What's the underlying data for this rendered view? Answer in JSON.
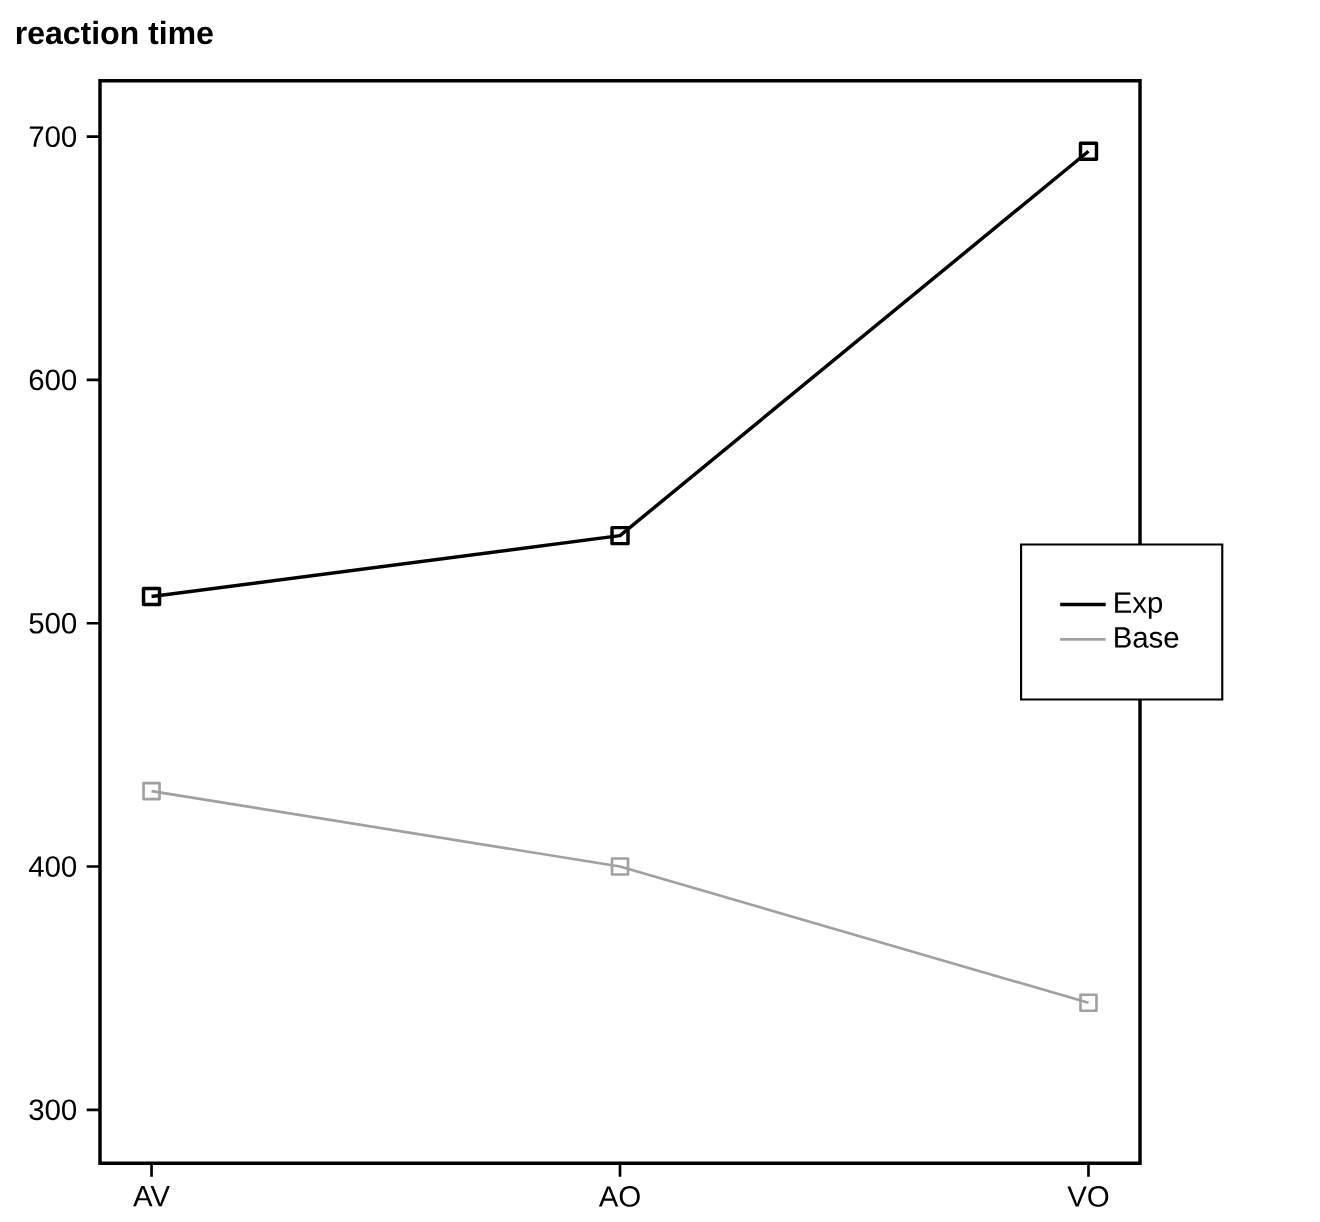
{
  "chart_data": {
    "type": "line",
    "title": "reaction time",
    "categories": [
      "AV",
      "AO",
      "VO"
    ],
    "series": [
      {
        "name": "Exp",
        "color": "#000000",
        "values": [
          511,
          536,
          694
        ]
      },
      {
        "name": "Base",
        "color": "#a0a0a0",
        "values": [
          431,
          400,
          344
        ]
      }
    ],
    "ylim": [
      278,
      723
    ],
    "yticks": [
      300,
      400,
      500,
      600,
      700
    ],
    "marker": "square",
    "line_style": "solid",
    "legend": "right",
    "grid": false
  }
}
